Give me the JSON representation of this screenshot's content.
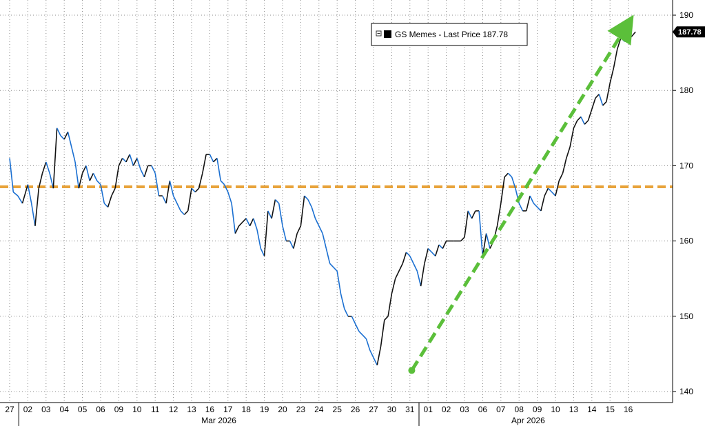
{
  "chart_data": {
    "type": "line",
    "title": "",
    "xlabel": "",
    "ylabel": "",
    "ylim": [
      139,
      191
    ],
    "y_ticks": [
      140,
      150,
      160,
      170,
      180,
      190
    ],
    "grid": true,
    "legend_position": "top-center",
    "x_day_labels": [
      "27",
      "02",
      "03",
      "04",
      "05",
      "06",
      "09",
      "10",
      "11",
      "12",
      "13",
      "16",
      "17",
      "18",
      "19",
      "20",
      "23",
      "24",
      "25",
      "26",
      "27",
      "30",
      "31",
      "01",
      "02",
      "03",
      "06",
      "07",
      "08",
      "09",
      "10",
      "13",
      "14",
      "15",
      "16"
    ],
    "months": [
      {
        "label": "Mar 2026",
        "start_index": 1,
        "end_index": 22
      },
      {
        "label": "Apr 2026",
        "start_index": 23,
        "end_index": 34
      }
    ],
    "series": [
      {
        "name": "GS Memes - Last Price",
        "last_value_label": "187.78",
        "color": "#1a6fd1",
        "values": [
          [
            0,
            171
          ],
          [
            0.2,
            166.5
          ],
          [
            0.45,
            166
          ],
          [
            0.7,
            165
          ],
          [
            1.0,
            167.5
          ],
          [
            1.2,
            165
          ],
          [
            1.4,
            162
          ],
          [
            1.6,
            167
          ],
          [
            1.8,
            169
          ],
          [
            2.0,
            170.5
          ],
          [
            2.2,
            169
          ],
          [
            2.4,
            167
          ],
          [
            2.6,
            175
          ],
          [
            2.8,
            174
          ],
          [
            3.0,
            173.5
          ],
          [
            3.2,
            174.5
          ],
          [
            3.4,
            172.5
          ],
          [
            3.6,
            170.5
          ],
          [
            3.8,
            167
          ],
          [
            4.0,
            169
          ],
          [
            4.2,
            170
          ],
          [
            4.4,
            168
          ],
          [
            4.6,
            169
          ],
          [
            4.8,
            168
          ],
          [
            5.0,
            167.5
          ],
          [
            5.2,
            165
          ],
          [
            5.4,
            164.5
          ],
          [
            5.6,
            166
          ],
          [
            5.8,
            167
          ],
          [
            6.0,
            170
          ],
          [
            6.2,
            171
          ],
          [
            6.4,
            170.5
          ],
          [
            6.6,
            171.5
          ],
          [
            6.8,
            170
          ],
          [
            7.0,
            171
          ],
          [
            7.2,
            169.5
          ],
          [
            7.4,
            168.5
          ],
          [
            7.6,
            170
          ],
          [
            7.8,
            170
          ],
          [
            8.0,
            169
          ],
          [
            8.2,
            166
          ],
          [
            8.4,
            166
          ],
          [
            8.6,
            165
          ],
          [
            8.8,
            168
          ],
          [
            9.0,
            166
          ],
          [
            9.2,
            165
          ],
          [
            9.4,
            164
          ],
          [
            9.6,
            163.5
          ],
          [
            9.8,
            164
          ],
          [
            10.0,
            167
          ],
          [
            10.2,
            166.5
          ],
          [
            10.4,
            167
          ],
          [
            10.6,
            169
          ],
          [
            10.8,
            171.5
          ],
          [
            11.0,
            171.5
          ],
          [
            11.2,
            170.5
          ],
          [
            11.4,
            171
          ],
          [
            11.6,
            168
          ],
          [
            11.8,
            167.5
          ],
          [
            12.0,
            166.5
          ],
          [
            12.2,
            165
          ],
          [
            12.4,
            161
          ],
          [
            12.6,
            162
          ],
          [
            12.8,
            162.5
          ],
          [
            13.0,
            163
          ],
          [
            13.2,
            162
          ],
          [
            13.4,
            163
          ],
          [
            13.6,
            161.5
          ],
          [
            13.8,
            159
          ],
          [
            14.0,
            158
          ],
          [
            14.2,
            164
          ],
          [
            14.4,
            163
          ],
          [
            14.6,
            165.5
          ],
          [
            14.8,
            165
          ],
          [
            15.0,
            162
          ],
          [
            15.2,
            160
          ],
          [
            15.4,
            160
          ],
          [
            15.6,
            159
          ],
          [
            15.8,
            161
          ],
          [
            16.0,
            162
          ],
          [
            16.2,
            166
          ],
          [
            16.4,
            165.5
          ],
          [
            16.6,
            164.5
          ],
          [
            16.8,
            163
          ],
          [
            17.0,
            162
          ],
          [
            17.2,
            161
          ],
          [
            17.4,
            159
          ],
          [
            17.6,
            157
          ],
          [
            17.8,
            156.5
          ],
          [
            18.0,
            156
          ],
          [
            18.2,
            153
          ],
          [
            18.4,
            151
          ],
          [
            18.6,
            150
          ],
          [
            18.8,
            150
          ],
          [
            19.0,
            149
          ],
          [
            19.2,
            148
          ],
          [
            19.4,
            147.5
          ],
          [
            19.6,
            147
          ],
          [
            19.8,
            145.5
          ],
          [
            20.0,
            144.5
          ],
          [
            20.2,
            143.5
          ],
          [
            20.4,
            146
          ],
          [
            20.6,
            149.5
          ],
          [
            20.8,
            150
          ],
          [
            21.0,
            153
          ],
          [
            21.2,
            155
          ],
          [
            21.4,
            156
          ],
          [
            21.6,
            157
          ],
          [
            21.8,
            158.5
          ],
          [
            22.0,
            158
          ],
          [
            22.2,
            157
          ],
          [
            22.4,
            156
          ],
          [
            22.6,
            154
          ],
          [
            22.8,
            157
          ],
          [
            23.0,
            159
          ],
          [
            23.2,
            158.5
          ],
          [
            23.4,
            158
          ],
          [
            23.6,
            159.5
          ],
          [
            23.8,
            159
          ],
          [
            24.0,
            160
          ],
          [
            24.4,
            160
          ],
          [
            24.8,
            160
          ],
          [
            25.0,
            160.5
          ],
          [
            25.2,
            164
          ],
          [
            25.4,
            163
          ],
          [
            25.6,
            164
          ],
          [
            25.8,
            164
          ],
          [
            26.0,
            158
          ],
          [
            26.2,
            161
          ],
          [
            26.4,
            159
          ],
          [
            26.6,
            160
          ],
          [
            26.8,
            162
          ],
          [
            27.0,
            165
          ],
          [
            27.2,
            168.5
          ],
          [
            27.4,
            169
          ],
          [
            27.6,
            168.5
          ],
          [
            27.8,
            167
          ],
          [
            28.0,
            165
          ],
          [
            28.2,
            164
          ],
          [
            28.4,
            164
          ],
          [
            28.6,
            166
          ],
          [
            28.8,
            165
          ],
          [
            29.0,
            164.5
          ],
          [
            29.2,
            164
          ],
          [
            29.4,
            166
          ],
          [
            29.6,
            167
          ],
          [
            29.8,
            166.5
          ],
          [
            30.0,
            166
          ],
          [
            30.2,
            168
          ],
          [
            30.4,
            169
          ],
          [
            30.6,
            171
          ],
          [
            30.8,
            172.5
          ],
          [
            31.0,
            175
          ],
          [
            31.2,
            176
          ],
          [
            31.4,
            176.5
          ],
          [
            31.6,
            175.5
          ],
          [
            31.8,
            176
          ],
          [
            32.0,
            177.5
          ],
          [
            32.2,
            179
          ],
          [
            32.4,
            179.5
          ],
          [
            32.6,
            178
          ],
          [
            32.8,
            178.5
          ],
          [
            33.0,
            181
          ],
          [
            33.2,
            183
          ],
          [
            33.4,
            185.5
          ],
          [
            33.6,
            187
          ],
          [
            33.8,
            186.5
          ],
          [
            34.0,
            186.8
          ],
          [
            34.2,
            187.2
          ],
          [
            34.4,
            187.78
          ]
        ]
      }
    ],
    "annotations": [
      {
        "type": "horizontal-dashed-line",
        "y": 167.2,
        "color": "#e8a33a"
      },
      {
        "type": "dashed-arrow",
        "from": [
          22.1,
          142.8
        ],
        "to": [
          33.9,
          188.5
        ],
        "color": "#5bbf3a"
      }
    ],
    "legend": {
      "label": "GS Memes - Last Price 187.78"
    }
  }
}
